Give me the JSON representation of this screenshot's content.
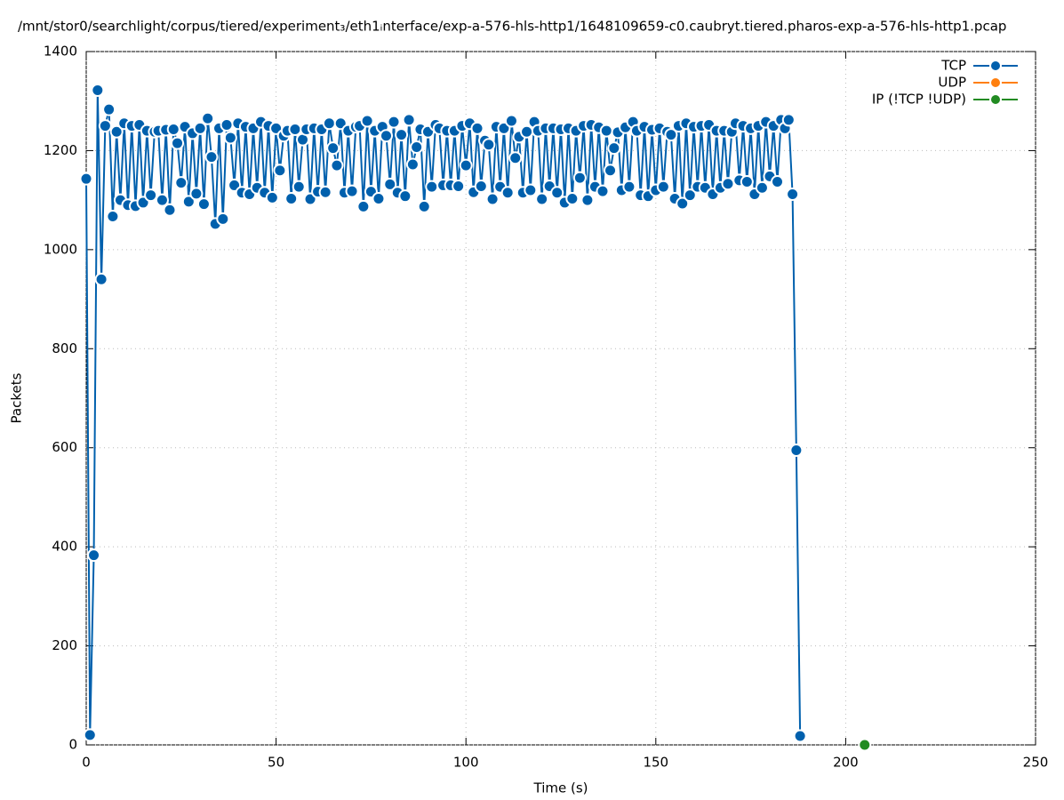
{
  "chart_data": {
    "type": "line",
    "title": "/mnt/stor0/searchlight/corpus/tiered/experiment₃/eth1ᵢnterface/exp-a-576-hls-http1/1648109659-c0.caubryt.tiered.pharos-exp-a-576-hls-http1.pcap",
    "xlabel": "Time (s)",
    "ylabel": "Packets",
    "xlim": [
      0,
      250
    ],
    "xticks": [
      0,
      50,
      100,
      150,
      200,
      250
    ],
    "ylim": [
      0,
      1400
    ],
    "yticks": [
      0,
      200,
      400,
      600,
      800,
      1000,
      1200,
      1400
    ],
    "grid": true,
    "legend": "top-right",
    "series": [
      {
        "name": "TCP",
        "color": "#0060ad",
        "x": [
          0,
          1,
          2,
          3,
          4,
          5,
          6,
          7,
          8,
          9,
          10,
          11,
          12,
          13,
          14,
          15,
          16,
          17,
          18,
          19,
          20,
          21,
          22,
          23,
          24,
          25,
          26,
          27,
          28,
          29,
          30,
          31,
          32,
          33,
          34,
          35,
          36,
          37,
          38,
          39,
          40,
          41,
          42,
          43,
          44,
          45,
          46,
          47,
          48,
          49,
          50,
          51,
          52,
          53,
          54,
          55,
          56,
          57,
          58,
          59,
          60,
          61,
          62,
          63,
          64,
          65,
          66,
          67,
          68,
          69,
          70,
          71,
          72,
          73,
          74,
          75,
          76,
          77,
          78,
          79,
          80,
          81,
          82,
          83,
          84,
          85,
          86,
          87,
          88,
          89,
          90,
          91,
          92,
          93,
          94,
          95,
          96,
          97,
          98,
          99,
          100,
          101,
          102,
          103,
          104,
          105,
          106,
          107,
          108,
          109,
          110,
          111,
          112,
          113,
          114,
          115,
          116,
          117,
          118,
          119,
          120,
          121,
          122,
          123,
          124,
          125,
          126,
          127,
          128,
          129,
          130,
          131,
          132,
          133,
          134,
          135,
          136,
          137,
          138,
          139,
          140,
          141,
          142,
          143,
          144,
          145,
          146,
          147,
          148,
          149,
          150,
          151,
          152,
          153,
          154,
          155,
          156,
          157,
          158,
          159,
          160,
          161,
          162,
          163,
          164,
          165,
          166,
          167,
          168,
          169,
          170,
          171,
          172,
          173,
          174,
          175,
          176,
          177,
          178,
          179,
          180,
          181,
          182,
          183,
          184,
          185,
          186,
          187,
          188
        ],
        "values": [
          1143,
          20,
          383,
          1322,
          940,
          1250,
          1283,
          1067,
          1238,
          1100,
          1255,
          1090,
          1250,
          1088,
          1252,
          1095,
          1240,
          1110,
          1238,
          1240,
          1100,
          1242,
          1080,
          1243,
          1215,
          1135,
          1248,
          1097,
          1235,
          1113,
          1245,
          1092,
          1265,
          1187,
          1052,
          1245,
          1062,
          1252,
          1226,
          1130,
          1255,
          1115,
          1248,
          1112,
          1245,
          1125,
          1258,
          1115,
          1250,
          1105,
          1245,
          1160,
          1230,
          1240,
          1103,
          1243,
          1127,
          1222,
          1243,
          1102,
          1245,
          1117,
          1243,
          1116,
          1255,
          1205,
          1170,
          1255,
          1115,
          1240,
          1118,
          1248,
          1250,
          1087,
          1260,
          1117,
          1240,
          1103,
          1248,
          1230,
          1132,
          1258,
          1115,
          1232,
          1108,
          1262,
          1172,
          1207,
          1243,
          1087,
          1238,
          1127,
          1252,
          1245,
          1130,
          1240,
          1130,
          1240,
          1128,
          1250,
          1170,
          1255,
          1116,
          1245,
          1128,
          1220,
          1212,
          1102,
          1248,
          1127,
          1245,
          1115,
          1260,
          1185,
          1228,
          1115,
          1238,
          1120,
          1258,
          1240,
          1102,
          1245,
          1128,
          1245,
          1115,
          1243,
          1095,
          1245,
          1103,
          1240,
          1145,
          1250,
          1100,
          1252,
          1127,
          1247,
          1118,
          1240,
          1160,
          1205,
          1237,
          1120,
          1247,
          1127,
          1258,
          1240,
          1110,
          1248,
          1108,
          1242,
          1120,
          1245,
          1127,
          1238,
          1232,
          1103,
          1250,
          1093,
          1255,
          1110,
          1248,
          1127,
          1250,
          1125,
          1252,
          1112,
          1240,
          1125,
          1240,
          1133,
          1238,
          1255,
          1140,
          1250,
          1137,
          1245,
          1112,
          1250,
          1125,
          1258,
          1148,
          1250,
          1137,
          1262,
          1245,
          1262,
          1112,
          595,
          18
        ]
      },
      {
        "name": "UDP",
        "color": "#ff7f0e",
        "x": [],
        "values": []
      },
      {
        "name": "IP (!TCP  !UDP)",
        "color": "#228b22",
        "x": [
          205
        ],
        "values": [
          0
        ]
      }
    ]
  }
}
